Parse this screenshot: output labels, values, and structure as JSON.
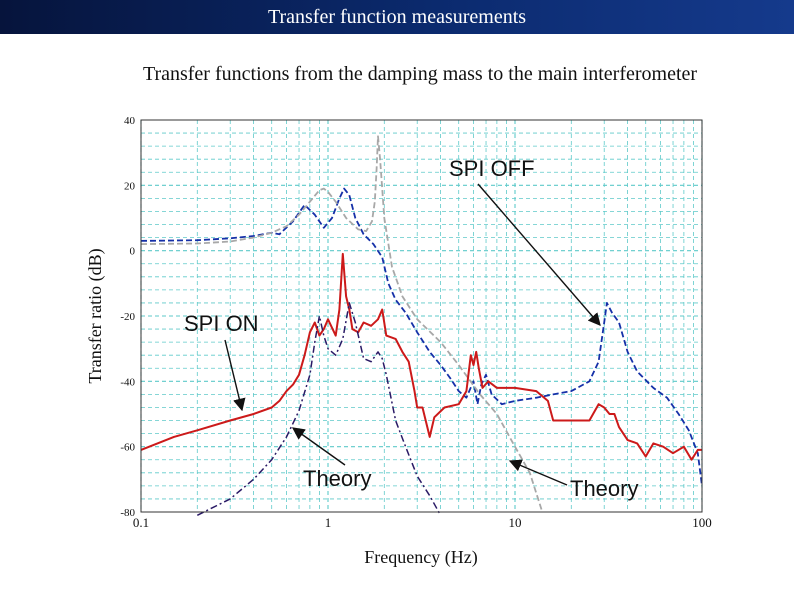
{
  "header": {
    "title": "Transfer function measurements"
  },
  "chart_data": {
    "type": "line",
    "title": "Transfer functions from the damping mass to the main interferometer",
    "xlabel": "Frequency (Hz)",
    "ylabel": "Transfer ratio (dB)",
    "xscale": "log",
    "xlim": [
      0.1,
      100
    ],
    "ylim": [
      -80,
      40
    ],
    "xticks": [
      {
        "value": 0.1,
        "label": "0.1"
      },
      {
        "value": 1,
        "label": "1"
      },
      {
        "value": 10,
        "label": "10"
      },
      {
        "value": 100,
        "label": "100"
      }
    ],
    "yticks": [
      {
        "value": 40,
        "label": "40"
      },
      {
        "value": 20,
        "label": "20"
      },
      {
        "value": 0,
        "label": "0"
      },
      {
        "value": -20,
        "label": "-20"
      },
      {
        "value": -40,
        "label": "-40"
      },
      {
        "value": -60,
        "label": "-60"
      },
      {
        "value": -80,
        "label": "-80"
      }
    ],
    "grid": true,
    "series": [
      {
        "color": "#1530a8",
        "dash": "6,3",
        "width": 1.8,
        "points": [
          [
            0.1,
            3
          ],
          [
            0.2,
            3.2
          ],
          [
            0.3,
            3.8
          ],
          [
            0.4,
            4.5
          ],
          [
            0.5,
            5.5
          ],
          [
            0.55,
            5
          ],
          [
            0.65,
            9
          ],
          [
            0.75,
            14
          ],
          [
            0.85,
            11
          ],
          [
            0.95,
            7
          ],
          [
            1.05,
            10
          ],
          [
            1.15,
            16
          ],
          [
            1.22,
            19
          ],
          [
            1.3,
            17
          ],
          [
            1.4,
            10
          ],
          [
            1.55,
            5
          ],
          [
            1.75,
            2
          ],
          [
            1.95,
            -2
          ],
          [
            2.1,
            -10
          ],
          [
            2.3,
            -15
          ],
          [
            2.6,
            -19
          ],
          [
            3.0,
            -25
          ],
          [
            3.5,
            -31
          ],
          [
            4.0,
            -35
          ],
          [
            4.5,
            -39
          ],
          [
            5.0,
            -43
          ],
          [
            5.5,
            -45
          ],
          [
            6.0,
            -40
          ],
          [
            6.3,
            -47
          ],
          [
            6.6,
            -41
          ],
          [
            7.0,
            -38
          ],
          [
            7.5,
            -44
          ],
          [
            8.5,
            -47
          ],
          [
            10,
            -46
          ],
          [
            13,
            -45
          ],
          [
            16,
            -44
          ],
          [
            20,
            -43
          ],
          [
            25,
            -40
          ],
          [
            28,
            -34
          ],
          [
            30,
            -22
          ],
          [
            31,
            -16
          ],
          [
            33,
            -19
          ],
          [
            36,
            -22
          ],
          [
            40,
            -31
          ],
          [
            45,
            -37
          ],
          [
            55,
            -42
          ],
          [
            65,
            -45
          ],
          [
            75,
            -50
          ],
          [
            85,
            -55
          ],
          [
            95,
            -62
          ],
          [
            100,
            -72
          ]
        ]
      },
      {
        "color": "#a8a8a8",
        "dash": "6,3",
        "width": 1.8,
        "points": [
          [
            0.1,
            2
          ],
          [
            0.2,
            2.2
          ],
          [
            0.3,
            2.8
          ],
          [
            0.4,
            4
          ],
          [
            0.5,
            5.5
          ],
          [
            0.6,
            7.5
          ],
          [
            0.7,
            11
          ],
          [
            0.8,
            15
          ],
          [
            0.9,
            18.5
          ],
          [
            0.95,
            19
          ],
          [
            1.0,
            18
          ],
          [
            1.1,
            15
          ],
          [
            1.25,
            10
          ],
          [
            1.45,
            6.5
          ],
          [
            1.6,
            6
          ],
          [
            1.72,
            9
          ],
          [
            1.78,
            15
          ],
          [
            1.82,
            25
          ],
          [
            1.85,
            35
          ],
          [
            1.9,
            28
          ],
          [
            2.0,
            10
          ],
          [
            2.2,
            -5
          ],
          [
            2.5,
            -14
          ],
          [
            3.0,
            -21
          ],
          [
            4.0,
            -28
          ],
          [
            5.0,
            -35
          ],
          [
            6.5,
            -44
          ],
          [
            8,
            -50
          ],
          [
            10,
            -60
          ],
          [
            12,
            -68
          ],
          [
            14,
            -80
          ]
        ]
      },
      {
        "color": "#cc1a1a",
        "dash": "",
        "width": 2,
        "points": [
          [
            0.1,
            -61
          ],
          [
            0.15,
            -57
          ],
          [
            0.2,
            -55
          ],
          [
            0.3,
            -52
          ],
          [
            0.4,
            -50
          ],
          [
            0.5,
            -48
          ],
          [
            0.55,
            -46
          ],
          [
            0.6,
            -43
          ],
          [
            0.65,
            -41
          ],
          [
            0.7,
            -38
          ],
          [
            0.75,
            -32
          ],
          [
            0.8,
            -25
          ],
          [
            0.85,
            -22
          ],
          [
            0.9,
            -26
          ],
          [
            0.95,
            -24
          ],
          [
            1.0,
            -21
          ],
          [
            1.1,
            -26
          ],
          [
            1.15,
            -18
          ],
          [
            1.2,
            -1
          ],
          [
            1.25,
            -14
          ],
          [
            1.3,
            -18
          ],
          [
            1.35,
            -24
          ],
          [
            1.45,
            -25
          ],
          [
            1.55,
            -22
          ],
          [
            1.7,
            -23
          ],
          [
            1.85,
            -21
          ],
          [
            1.95,
            -18
          ],
          [
            2.05,
            -26
          ],
          [
            2.3,
            -27
          ],
          [
            2.5,
            -31
          ],
          [
            2.7,
            -34
          ],
          [
            2.9,
            -43
          ],
          [
            3.0,
            -48
          ],
          [
            3.2,
            -48
          ],
          [
            3.5,
            -57
          ],
          [
            3.7,
            -51
          ],
          [
            4.2,
            -48
          ],
          [
            5.0,
            -47
          ],
          [
            5.5,
            -43
          ],
          [
            5.8,
            -32
          ],
          [
            6.0,
            -35
          ],
          [
            6.2,
            -31
          ],
          [
            6.4,
            -36
          ],
          [
            6.7,
            -42
          ],
          [
            7.2,
            -40
          ],
          [
            8,
            -42
          ],
          [
            10,
            -42
          ],
          [
            13,
            -43
          ],
          [
            15,
            -46
          ],
          [
            16,
            -52
          ],
          [
            20,
            -52
          ],
          [
            25,
            -52
          ],
          [
            28,
            -47
          ],
          [
            30,
            -48
          ],
          [
            32,
            -50
          ],
          [
            34,
            -50
          ],
          [
            36,
            -54
          ],
          [
            40,
            -58
          ],
          [
            45,
            -59
          ],
          [
            50,
            -63
          ],
          [
            55,
            -59
          ],
          [
            62,
            -60
          ],
          [
            70,
            -62
          ],
          [
            80,
            -60
          ],
          [
            88,
            -64
          ],
          [
            95,
            -61
          ],
          [
            100,
            -61
          ]
        ]
      },
      {
        "color": "#2a1a66",
        "dash": "7,3,2,3",
        "width": 1.5,
        "points": [
          [
            0.2,
            -81
          ],
          [
            0.3,
            -76
          ],
          [
            0.4,
            -70
          ],
          [
            0.5,
            -64
          ],
          [
            0.6,
            -57
          ],
          [
            0.7,
            -49
          ],
          [
            0.8,
            -38
          ],
          [
            0.85,
            -28
          ],
          [
            0.9,
            -20
          ],
          [
            0.95,
            -26
          ],
          [
            1.0,
            -30
          ],
          [
            1.1,
            -32
          ],
          [
            1.2,
            -27
          ],
          [
            1.3,
            -16
          ],
          [
            1.4,
            -22
          ],
          [
            1.55,
            -33
          ],
          [
            1.7,
            -34
          ],
          [
            1.85,
            -31
          ],
          [
            1.95,
            -33
          ],
          [
            2.05,
            -38
          ],
          [
            2.3,
            -52
          ],
          [
            2.6,
            -60
          ],
          [
            3.0,
            -69
          ],
          [
            3.5,
            -75
          ],
          [
            4.0,
            -81
          ]
        ]
      }
    ],
    "annotations": [
      {
        "text": "SPI OFF"
      },
      {
        "text": "SPI ON"
      },
      {
        "text": "Theory"
      },
      {
        "text": "Theory"
      }
    ]
  }
}
